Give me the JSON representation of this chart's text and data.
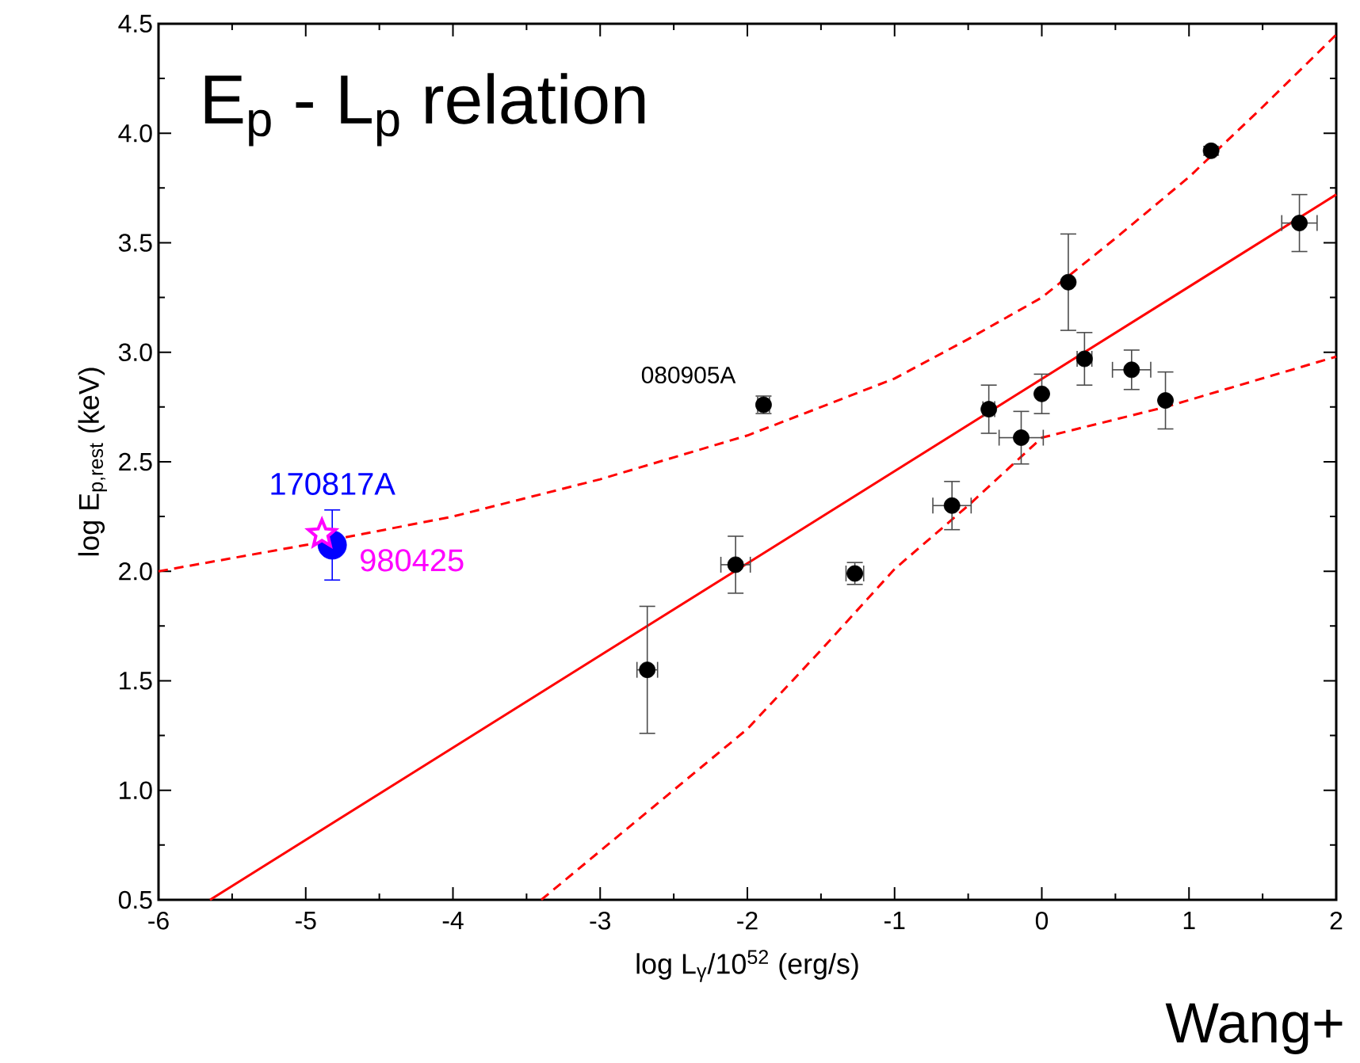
{
  "chart_data": {
    "type": "scatter",
    "title": "E$_{p}$ - L$_{p}$ relation",
    "xlabel": "log L$_{γ}$/10$^{52}$ (erg/s)",
    "ylabel": "log E$_{p,rest}$ (keV)",
    "xlim": [
      -6,
      2
    ],
    "ylim": [
      0.5,
      4.5
    ],
    "xticks": [
      -6,
      -5,
      -4,
      -3,
      -2,
      -1,
      0,
      1,
      2
    ],
    "yticks": [
      0.5,
      {
        "value": 1,
        "label": "1.0"
      },
      1.5,
      {
        "value": 2,
        "label": "2.0"
      },
      2.5,
      {
        "value": 3,
        "label": "3.0"
      },
      3.5,
      {
        "value": 4,
        "label": "4.0"
      },
      4.5
    ],
    "grid": false,
    "series": [
      {
        "marker": "circle",
        "color": "#000000",
        "x": [
          -2.68,
          -2.08,
          -1.89,
          -1.27,
          -0.61,
          -0.36,
          -0.14,
          0.0,
          0.18,
          0.29,
          0.61,
          0.84,
          1.15,
          1.75
        ],
        "values": [
          1.55,
          2.03,
          2.76,
          1.99,
          2.3,
          2.74,
          2.61,
          2.81,
          3.32,
          2.97,
          2.92,
          2.78,
          3.92,
          3.59
        ],
        "errors": [
          0.29,
          0.13,
          0.04,
          0.05,
          0.11,
          0.11,
          0.12,
          0.09,
          0.22,
          0.12,
          0.09,
          0.13,
          0.02,
          0.13
        ],
        "xerrors": [
          0.07,
          0.1,
          0.04,
          0.06,
          0.13,
          0.04,
          0.15,
          null,
          null,
          0.05,
          0.13,
          null,
          null,
          0.12
        ]
      },
      {
        "name": "170817A",
        "marker": "circle",
        "color": "#0000ff",
        "x": [
          -4.82
        ],
        "values": [
          2.12
        ],
        "errors": [
          0.16
        ]
      },
      {
        "name": "980425",
        "marker": "star",
        "color": "#ff00ff",
        "x": [
          -4.89
        ],
        "values": [
          2.17
        ]
      },
      {
        "type": "line",
        "line_style": "solid",
        "color": "#ff0000",
        "x": [
          -5.65,
          2
        ],
        "values": [
          0.5,
          3.72
        ]
      },
      {
        "type": "line",
        "line_style": "dashed",
        "color": "#ff0000",
        "x": [
          -6,
          -5,
          -4,
          -3,
          -2,
          -1,
          -0.5,
          0,
          0.5,
          1,
          1.5,
          2
        ],
        "values": [
          2.0,
          2.12,
          2.25,
          2.42,
          2.62,
          2.88,
          3.06,
          3.25,
          3.52,
          3.8,
          4.12,
          4.45
        ]
      },
      {
        "type": "line",
        "line_style": "dashed",
        "color": "#ff0000",
        "x": [
          -3.4,
          -2,
          -1.5,
          -1,
          -0.5,
          0,
          0.84,
          2
        ],
        "values": [
          0.5,
          1.28,
          1.64,
          2.01,
          2.3,
          2.61,
          2.75,
          2.98
        ]
      }
    ],
    "annotations": [
      {
        "text": "080905A",
        "x": -1.89,
        "y": 2.76
      },
      "Wang+"
    ]
  }
}
